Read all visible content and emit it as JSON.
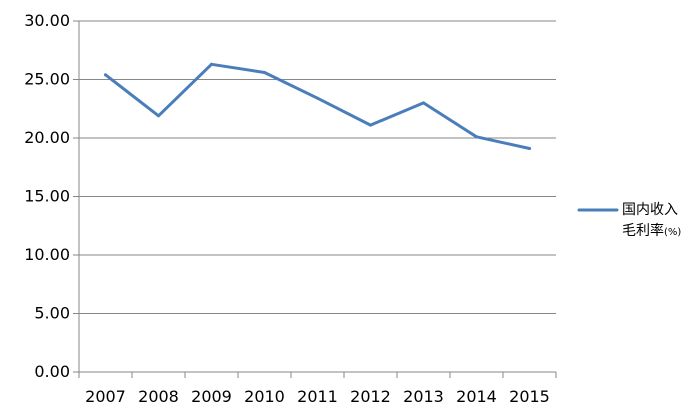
{
  "chart_data": {
    "type": "line",
    "x": [
      "2007",
      "2008",
      "2009",
      "2010",
      "2011",
      "2012",
      "2013",
      "2014",
      "2015"
    ],
    "series": [
      {
        "name_line1": "国内收入",
        "name_line2_main": "毛利率",
        "name_line2_suffix": "(%)",
        "color": "#4A7EBB",
        "values": [
          25.4,
          21.9,
          26.3,
          25.6,
          23.4,
          21.1,
          23.0,
          20.1,
          19.1
        ]
      }
    ],
    "ylim": [
      0,
      30
    ],
    "ytick_labels": [
      "0.00",
      "5.00",
      "10.00",
      "15.00",
      "20.00",
      "25.00",
      "30.00"
    ],
    "title": "",
    "xlabel": "",
    "ylabel": "",
    "grid": true,
    "legend_position": "right"
  }
}
